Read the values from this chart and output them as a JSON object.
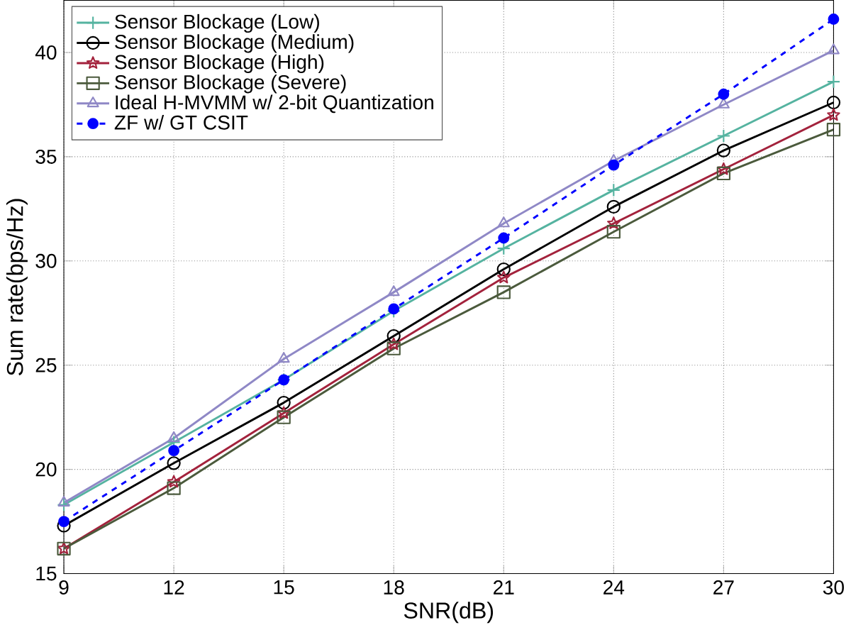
{
  "chart_data": {
    "type": "line",
    "xlabel": "SNR(dB)",
    "ylabel": "Sum rate(bps/Hz)",
    "x": [
      9,
      12,
      15,
      18,
      21,
      24,
      27,
      30
    ],
    "xlim": [
      9,
      30
    ],
    "ylim": [
      15,
      42.5
    ],
    "xticks": [
      9,
      12,
      15,
      18,
      21,
      24,
      27,
      30
    ],
    "yticks": [
      15,
      20,
      25,
      30,
      35,
      40
    ],
    "grid": true,
    "legend": "top left",
    "line_style": "solid",
    "series": [
      {
        "name": "Sensor Blockage (Low)",
        "color": "#55b3a0",
        "marker": "cross",
        "values": [
          18.3,
          21.3,
          24.3,
          27.6,
          30.6,
          33.4,
          36.0,
          38.6
        ]
      },
      {
        "name": "Sensor Blockage (Medium)",
        "color": "#000000",
        "marker": "circle",
        "values": [
          17.3,
          20.3,
          23.2,
          26.4,
          29.6,
          32.6,
          35.3,
          37.6
        ]
      },
      {
        "name": "Sensor Blockage (High)",
        "color": "#a3223c",
        "marker": "star",
        "values": [
          16.2,
          19.4,
          22.7,
          26.0,
          29.2,
          31.8,
          34.4,
          37.0
        ]
      },
      {
        "name": "Sensor Blockage (Severe)",
        "color": "#4b5a3c",
        "marker": "square",
        "values": [
          16.2,
          19.1,
          22.5,
          25.8,
          28.5,
          31.4,
          34.2,
          36.3
        ]
      },
      {
        "name": "Ideal H-MVMM w/ 2-bit Quantization",
        "color": "#8f88c6",
        "marker": "triangle",
        "values": [
          18.4,
          21.5,
          25.3,
          28.5,
          31.8,
          34.8,
          37.5,
          40.1
        ]
      },
      {
        "name": "ZF w/ GT CSIT",
        "color": "#0000ff",
        "marker": "circle",
        "line_style": "dashed",
        "values": [
          17.5,
          20.9,
          24.3,
          27.7,
          31.1,
          34.6,
          38.0,
          41.6
        ]
      }
    ]
  }
}
